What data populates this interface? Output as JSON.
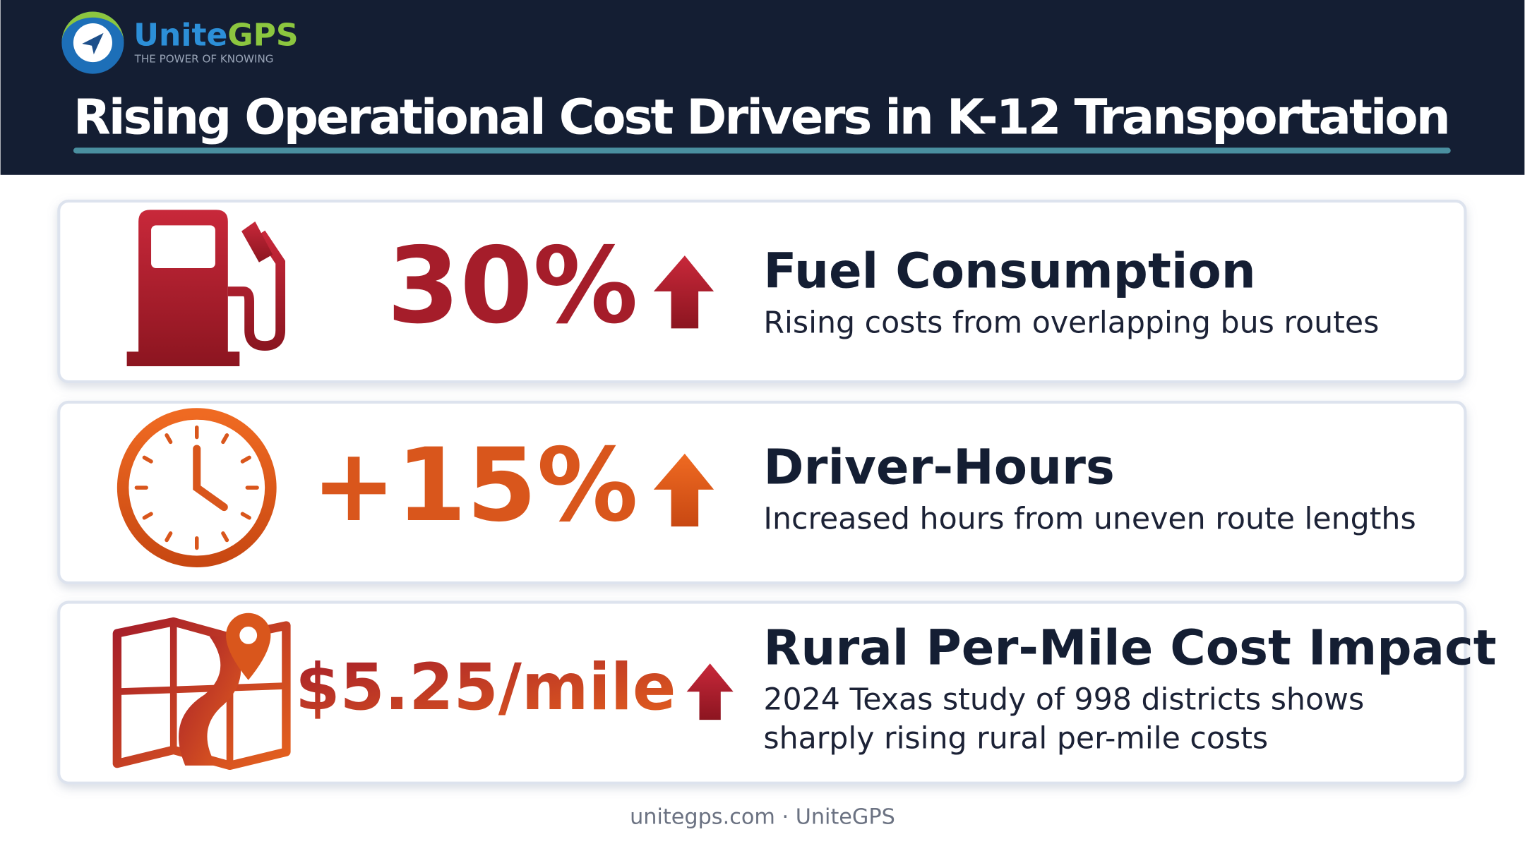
{
  "header": {
    "logo": {
      "name_parts": [
        "Unite",
        "GPS"
      ],
      "tagline": "THE POWER OF KNOWING"
    },
    "title": "Rising Operational Cost Drivers in K-12 Transportation"
  },
  "items": [
    {
      "stat": "30%",
      "heading": "Fuel Consumption",
      "description_lines": [
        "Rising costs from overlapping bus routes"
      ]
    },
    {
      "stat": "+15%",
      "heading": "Driver-Hours",
      "description_lines": [
        "Increased hours from uneven route lengths"
      ]
    },
    {
      "stat": "$5.25/mile",
      "heading": "Rural Per-Mile Cost Impact",
      "description_lines": [
        "2024 Texas study of 998 districts shows",
        "sharply rising rural per-mile costs"
      ]
    }
  ],
  "footer": "unitegps.com · UniteGPS"
}
